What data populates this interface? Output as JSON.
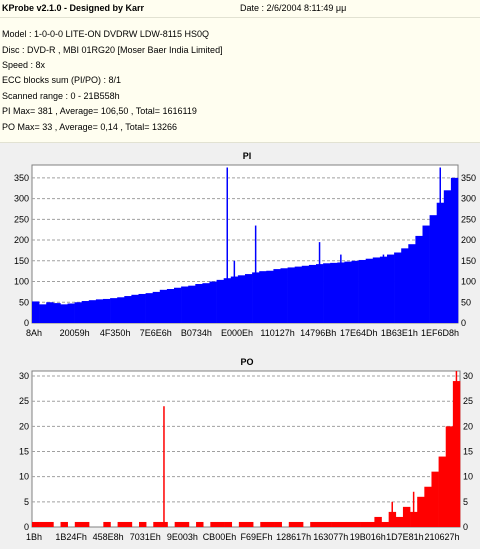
{
  "header": {
    "title": "KProbe v2.1.0 - Designed by Karr",
    "date": "Date : 2/6/2004 8:11:49 μμ",
    "lines": [
      "Model : 1-0-0-0 LITE-ON DVDRW LDW-8115   HS0Q",
      "Disc : DVD-R , MBI 01RG20   [Moser Baer India Limited]",
      "Speed : 8x",
      "ECC blocks sum (PI/PO) : 8/1",
      "Scanned range : 0 - 21B558h",
      "PI Max= 381 , Average= 106,50 , Total= 1616119",
      "PO Max= 33 , Average= 0,14 , Total= 13266"
    ]
  },
  "colors": {
    "pi": "#0000ff",
    "po": "#ff0000",
    "grid": "#a0a0a0",
    "chart_bg": "#ffffff",
    "panel_bg": "#f0f0f0",
    "header_bg": "#fffef0"
  },
  "chart_data": [
    {
      "type": "area",
      "title": "PI",
      "series": [
        {
          "values": [
            52,
            45,
            50,
            48,
            45,
            47,
            50,
            53,
            55,
            57,
            58,
            60,
            62,
            65,
            68,
            70,
            72,
            75,
            80,
            82,
            85,
            88,
            90,
            94,
            96,
            100,
            104,
            108,
            112,
            115,
            118,
            122,
            125,
            126,
            130,
            132,
            134,
            136,
            138,
            140,
            142,
            144,
            145,
            146,
            148,
            150,
            152,
            155,
            158,
            160,
            165,
            170,
            180,
            190,
            210,
            235,
            260,
            290,
            320,
            350
          ]
        }
      ],
      "spikes": [
        [
          27,
          375
        ],
        [
          28,
          150
        ],
        [
          31,
          235
        ],
        [
          40,
          195
        ],
        [
          43,
          165
        ],
        [
          49,
          165
        ],
        [
          57,
          375
        ]
      ],
      "y_ticks": [
        0,
        50,
        100,
        150,
        200,
        250,
        300,
        350
      ],
      "ylim": [
        0,
        381
      ],
      "x_tick_labels": [
        "8Ah",
        "20059h",
        "4F350h",
        "7E6E6h",
        "B0734h",
        "E000Eh",
        "110127h",
        "14796Bh",
        "17E64Dh",
        "1B63E1h",
        "1EF6D8h"
      ],
      "grid": true
    },
    {
      "type": "bar",
      "title": "PO",
      "series": [
        {
          "values": [
            1,
            1,
            1,
            0,
            1,
            0,
            1,
            1,
            0,
            0,
            1,
            0,
            1,
            1,
            0,
            1,
            0,
            1,
            1,
            0,
            1,
            1,
            0,
            1,
            0,
            1,
            1,
            1,
            0,
            1,
            1,
            0,
            1,
            1,
            1,
            0,
            1,
            1,
            0,
            1,
            1,
            1,
            1,
            1,
            1,
            1,
            1,
            1,
            2,
            1,
            3,
            2,
            4,
            3,
            6,
            8,
            11,
            14,
            20,
            29
          ]
        }
      ],
      "spikes": [
        [
          18,
          24
        ],
        [
          50,
          5
        ],
        [
          53,
          7
        ],
        [
          59,
          31
        ]
      ],
      "y_ticks": [
        0,
        5,
        10,
        15,
        20,
        25,
        30
      ],
      "ylim": [
        0,
        31
      ],
      "x_tick_labels": [
        "1Bh",
        "1B24Fh",
        "458E8h",
        "7031Eh",
        "9E003h",
        "CB00Eh",
        "F69EFh",
        "128617h",
        "163077h",
        "19B016h",
        "1D7E81h",
        "210627h"
      ],
      "grid": true
    }
  ]
}
